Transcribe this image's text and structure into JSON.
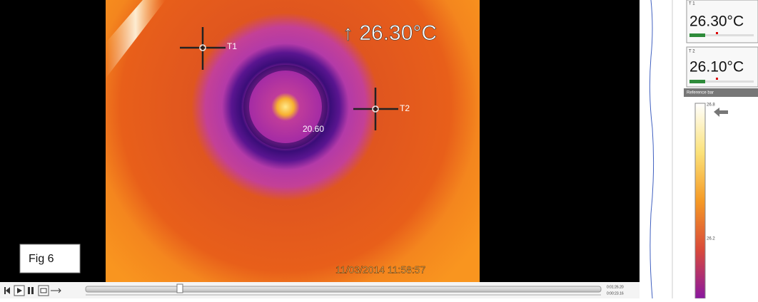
{
  "viewer": {
    "max_readout": "↑ 26.30°C",
    "markers": [
      {
        "label": "T1"
      },
      {
        "label": "T2"
      }
    ],
    "spot_value": "20.60",
    "timestamp": "11/03/2014 11:58:57",
    "figure_label": "Fig 6",
    "time_total": "0:01:26.20",
    "time_current": "0:00:23.16"
  },
  "panel": {
    "readouts": [
      {
        "label": "T 1",
        "value": "26.30°C"
      },
      {
        "label": "T 2",
        "value": "26.10°C"
      }
    ],
    "reference_bar": {
      "title": "Reference bar",
      "top_label": "26.8",
      "mid_label": "26.2"
    }
  }
}
